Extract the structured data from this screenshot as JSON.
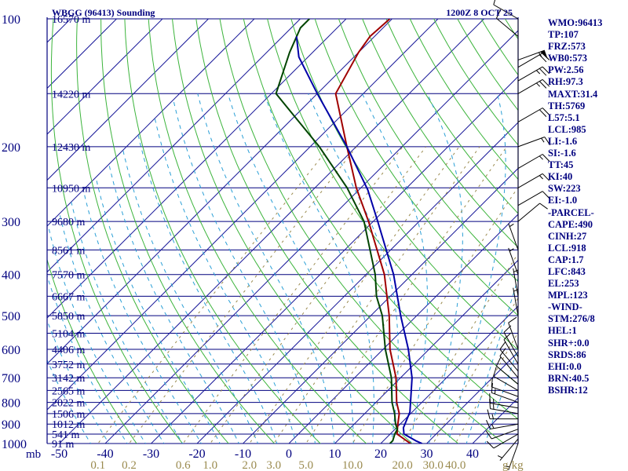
{
  "colors": {
    "background": "#ffffff",
    "isobar": "#00007f",
    "isotherm": "#1a1a9a",
    "dry_adiabat": "#3cb43c",
    "moist_adiabat": "#2a9fd6",
    "mixing_ratio": "#9a8a4e",
    "temperature": "#a00000",
    "dewpoint": "#004400",
    "parcel": "#0000a8",
    "wind_barb": "#000000",
    "text": "#00007f"
  },
  "header": {
    "station": "WBGG (96413) Sounding",
    "time": "1200Z  8 OCT 25"
  },
  "chart_data": {
    "type": "skew-t",
    "title": "WBGG (96413) Sounding",
    "valid_time": "1200Z  8 OCT 25",
    "pressure_axis": {
      "unit_label": "mb",
      "range": [
        1000,
        100
      ],
      "ticks": [
        100,
        200,
        300,
        400,
        500,
        600,
        700,
        800,
        900,
        1000
      ],
      "labels": [
        "100",
        "200",
        "300",
        "400",
        "500",
        "600",
        "700",
        "800",
        "900",
        "1000"
      ]
    },
    "height_labels": [
      {
        "p": 100,
        "label": "16570 m"
      },
      {
        "p": 150,
        "label": "14220 m"
      },
      {
        "p": 200,
        "label": "12430 m"
      },
      {
        "p": 250,
        "label": "10950 m"
      },
      {
        "p": 300,
        "label": "9680 m"
      },
      {
        "p": 350,
        "label": "8561 m"
      },
      {
        "p": 400,
        "label": "7570 m"
      },
      {
        "p": 450,
        "label": "6667 m"
      },
      {
        "p": 500,
        "label": "5850 m"
      },
      {
        "p": 550,
        "label": "5104 m"
      },
      {
        "p": 600,
        "label": "4406 m"
      },
      {
        "p": 650,
        "label": "3752 m"
      },
      {
        "p": 700,
        "label": "3142 m"
      },
      {
        "p": 750,
        "label": "2565 m"
      },
      {
        "p": 800,
        "label": "2022 m"
      },
      {
        "p": 850,
        "label": "1506 m"
      },
      {
        "p": 900,
        "label": "1012 m"
      },
      {
        "p": 950,
        "label": "541 m"
      },
      {
        "p": 1000,
        "label": "91 m"
      }
    ],
    "temperature_axis": {
      "unit": "C",
      "ticks": [
        -50,
        -40,
        -30,
        -20,
        -10,
        0,
        10,
        20,
        30,
        40
      ],
      "labels": [
        "-50",
        "-40",
        "-30",
        "-20",
        "-10",
        "0",
        "10",
        "20",
        "30",
        "40"
      ]
    },
    "mixing_ratio_axis": {
      "unit_label": "g/kg",
      "values": [
        0.1,
        0.2,
        0.6,
        1.0,
        2.0,
        3.0,
        5.0,
        10.0,
        20.0,
        30.0,
        40.0
      ],
      "labels": [
        "0.1",
        "0.2",
        "0.6",
        "1.0",
        "2.0",
        "3.0",
        "5.0",
        "10.0",
        "20.0",
        "30.0",
        "40.0"
      ]
    },
    "series": [
      {
        "name": "Temperature",
        "points": [
          [
            1000,
            26.5
          ],
          [
            985,
            25.0
          ],
          [
            950,
            21.5
          ],
          [
            925,
            20.5
          ],
          [
            900,
            19.5
          ],
          [
            850,
            17.5
          ],
          [
            800,
            14.5
          ],
          [
            700,
            9.0
          ],
          [
            600,
            1.5
          ],
          [
            500,
            -6.0
          ],
          [
            400,
            -16.0
          ],
          [
            300,
            -31.0
          ],
          [
            250,
            -41.0
          ],
          [
            200,
            -52.0
          ],
          [
            150,
            -66.0
          ],
          [
            120,
            -70.0
          ],
          [
            110,
            -71.0
          ],
          [
            100,
            -70.5
          ]
        ]
      },
      {
        "name": "Dewpoint",
        "points": [
          [
            1000,
            22.0
          ],
          [
            985,
            22.0
          ],
          [
            950,
            21.0
          ],
          [
            925,
            20.5
          ],
          [
            900,
            19.0
          ],
          [
            850,
            16.5
          ],
          [
            800,
            13.5
          ],
          [
            700,
            8.0
          ],
          [
            600,
            0.5
          ],
          [
            500,
            -7.5
          ],
          [
            450,
            -13.0
          ],
          [
            400,
            -18.0
          ],
          [
            300,
            -32.0
          ],
          [
            250,
            -43.0
          ],
          [
            200,
            -58.0
          ],
          [
            150,
            -79.0
          ],
          [
            120,
            -85.0
          ],
          [
            105,
            -88.0
          ],
          [
            100,
            -88.0
          ]
        ]
      },
      {
        "name": "Parcel",
        "points": [
          [
            1000,
            29.0
          ],
          [
            985,
            27.0
          ],
          [
            950,
            23.0
          ],
          [
            918,
            21.5
          ],
          [
            843,
            19.5
          ],
          [
            700,
            12.5
          ],
          [
            600,
            5.5
          ],
          [
            500,
            -3.5
          ],
          [
            400,
            -14.0
          ],
          [
            300,
            -29.0
          ],
          [
            253,
            -38.0
          ],
          [
            200,
            -52.0
          ],
          [
            150,
            -70.0
          ],
          [
            123,
            -82.0
          ],
          [
            110,
            -87.0
          ]
        ]
      }
    ],
    "winds": [
      {
        "p": 1000,
        "dir": 200,
        "kt": 5
      },
      {
        "p": 975,
        "dir": 220,
        "kt": 5
      },
      {
        "p": 950,
        "dir": 240,
        "kt": 10
      },
      {
        "p": 925,
        "dir": 250,
        "kt": 10
      },
      {
        "p": 900,
        "dir": 260,
        "kt": 15
      },
      {
        "p": 875,
        "dir": 270,
        "kt": 15
      },
      {
        "p": 850,
        "dir": 280,
        "kt": 15
      },
      {
        "p": 825,
        "dir": 280,
        "kt": 15
      },
      {
        "p": 800,
        "dir": 290,
        "kt": 15
      },
      {
        "p": 775,
        "dir": 290,
        "kt": 10
      },
      {
        "p": 750,
        "dir": 300,
        "kt": 10
      },
      {
        "p": 725,
        "dir": 310,
        "kt": 10
      },
      {
        "p": 700,
        "dir": 320,
        "kt": 10
      },
      {
        "p": 675,
        "dir": 320,
        "kt": 10
      },
      {
        "p": 650,
        "dir": 330,
        "kt": 10
      },
      {
        "p": 625,
        "dir": 330,
        "kt": 10
      },
      {
        "p": 600,
        "dir": 340,
        "kt": 10
      },
      {
        "p": 500,
        "dir": 350,
        "kt": 5
      },
      {
        "p": 450,
        "dir": 350,
        "kt": 5
      },
      {
        "p": 400,
        "dir": 340,
        "kt": 5
      },
      {
        "p": 350,
        "dir": 340,
        "kt": 5
      },
      {
        "p": 300,
        "dir": 50,
        "kt": 10
      },
      {
        "p": 275,
        "dir": 60,
        "kt": 10
      },
      {
        "p": 250,
        "dir": 60,
        "kt": 15
      },
      {
        "p": 225,
        "dir": 60,
        "kt": 15
      },
      {
        "p": 200,
        "dir": 70,
        "kt": 15
      },
      {
        "p": 175,
        "dir": 60,
        "kt": 20
      },
      {
        "p": 150,
        "dir": 60,
        "kt": 25
      },
      {
        "p": 140,
        "dir": 60,
        "kt": 25
      },
      {
        "p": 130,
        "dir": 60,
        "kt": 20
      },
      {
        "p": 125,
        "dir": 70,
        "kt": 55
      },
      {
        "p": 110,
        "dir": 310,
        "kt": 10
      },
      {
        "p": 100,
        "dir": 300,
        "kt": 10
      }
    ]
  },
  "side_panel": {
    "lines": [
      "WMO:96413",
      "TP:107",
      "FRZ:573",
      "WB0:573",
      "PW:2.56",
      "RH:97.3",
      "MAXT:31.4",
      "TH:5769",
      "L57:5.1",
      "LCL:985",
      "LI:-1.6",
      "SI:-1.6",
      "TT:45",
      "KI:40",
      "SW:223",
      "EI:-1.0",
      "-PARCEL-",
      "CAPE:490",
      "CINH:27",
      "LCL:918",
      "CAP:1.7",
      "LFC:843",
      "EL:253",
      "MPL:123",
      "-WIND-",
      "STM:276/8",
      "HEL:1",
      "SHR+:0.0",
      "SRDS:86",
      "EHI:0.0",
      "BRN:40.5",
      "BSHR:12"
    ]
  }
}
